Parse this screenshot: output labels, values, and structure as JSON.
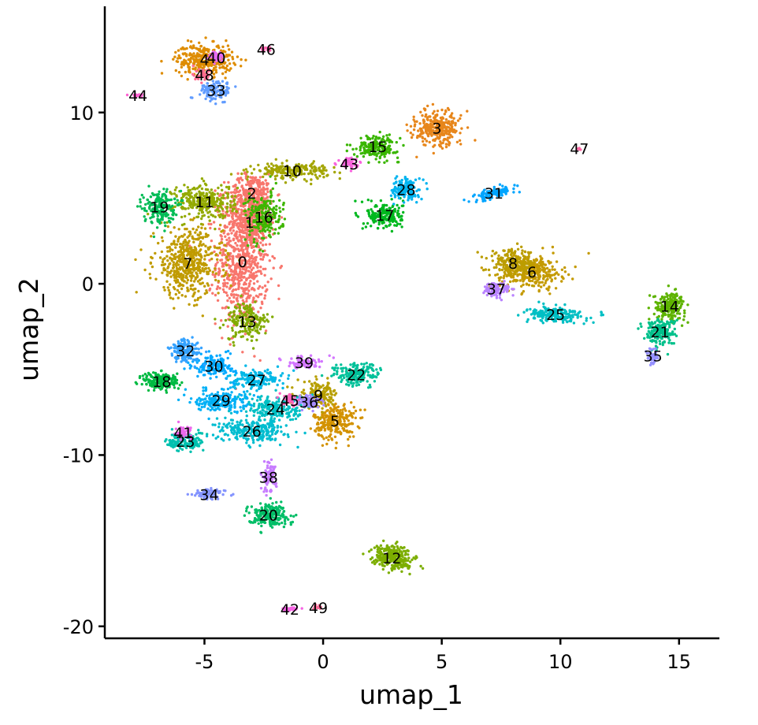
{
  "chart_data": {
    "type": "scatter",
    "title": "",
    "xlabel": "umap_1",
    "ylabel": "umap_2",
    "xlim": [
      -9.2,
      16.7
    ],
    "ylim": [
      -20.7,
      16.2
    ],
    "xticks": [
      -5,
      0,
      5,
      10,
      15
    ],
    "yticks": [
      -20,
      -10,
      0,
      10
    ],
    "xtick_labels": [
      "-5",
      "0",
      "5",
      "10",
      "15"
    ],
    "ytick_labels": [
      "-20",
      "-10",
      "0",
      "10"
    ],
    "grid": false,
    "legend": "none",
    "clusters": [
      {
        "label": "0",
        "x": -3.4,
        "y": 1.3,
        "sx": 1.0,
        "sy": 3.5,
        "rot": 0,
        "n": 700,
        "color": "#F8766D"
      },
      {
        "label": "1",
        "x": -3.1,
        "y": 3.6,
        "sx": 0.8,
        "sy": 1.2,
        "rot": 0,
        "n": 250,
        "color": "#F8766D"
      },
      {
        "label": "2",
        "x": -3.0,
        "y": 5.3,
        "sx": 0.9,
        "sy": 1.0,
        "rot": 0,
        "n": 250,
        "color": "#F8766D"
      },
      {
        "label": "3",
        "x": 4.8,
        "y": 9.1,
        "sx": 0.9,
        "sy": 0.9,
        "rot": 30,
        "n": 300,
        "color": "#E7861B"
      },
      {
        "label": "4",
        "x": -5.0,
        "y": 13.1,
        "sx": 1.1,
        "sy": 0.8,
        "rot": 0,
        "n": 300,
        "color": "#DE8C00"
      },
      {
        "label": "5",
        "x": 0.5,
        "y": -8.0,
        "sx": 0.8,
        "sy": 1.0,
        "rot": 0,
        "n": 250,
        "color": "#D39200"
      },
      {
        "label": "6",
        "x": 8.8,
        "y": 0.7,
        "sx": 1.2,
        "sy": 0.9,
        "rot": 0,
        "n": 300,
        "color": "#C49A00"
      },
      {
        "label": "7",
        "x": -5.7,
        "y": 1.2,
        "sx": 1.3,
        "sy": 1.8,
        "rot": 0,
        "n": 500,
        "color": "#C09B00"
      },
      {
        "label": "8",
        "x": 8.0,
        "y": 1.2,
        "sx": 0.9,
        "sy": 0.7,
        "rot": 0,
        "n": 200,
        "color": "#BB9D00"
      },
      {
        "label": "9",
        "x": -0.2,
        "y": -6.5,
        "sx": 0.8,
        "sy": 0.7,
        "rot": 0,
        "n": 150,
        "color": "#B79F00"
      },
      {
        "label": "10",
        "x": -1.3,
        "y": 6.6,
        "sx": 1.4,
        "sy": 0.4,
        "rot": 0,
        "n": 200,
        "color": "#A3A500"
      },
      {
        "label": "11",
        "x": -5.0,
        "y": 4.8,
        "sx": 1.2,
        "sy": 0.9,
        "rot": 0,
        "n": 300,
        "color": "#93AA00"
      },
      {
        "label": "12",
        "x": 2.9,
        "y": -16.0,
        "sx": 0.8,
        "sy": 0.6,
        "rot": -30,
        "n": 250,
        "color": "#7CAE00"
      },
      {
        "label": "13",
        "x": -3.2,
        "y": -2.2,
        "sx": 0.8,
        "sy": 1.0,
        "rot": 0,
        "n": 180,
        "color": "#82AB00"
      },
      {
        "label": "14",
        "x": 14.6,
        "y": -1.3,
        "sx": 0.6,
        "sy": 0.7,
        "rot": 0,
        "n": 200,
        "color": "#5EB300"
      },
      {
        "label": "15",
        "x": 2.3,
        "y": 8.0,
        "sx": 0.8,
        "sy": 0.6,
        "rot": 0,
        "n": 180,
        "color": "#39B600"
      },
      {
        "label": "16",
        "x": -2.5,
        "y": 3.9,
        "sx": 0.7,
        "sy": 1.3,
        "rot": 0,
        "n": 200,
        "color": "#3EB600"
      },
      {
        "label": "17",
        "x": 2.6,
        "y": 4.0,
        "sx": 0.7,
        "sy": 0.7,
        "rot": 0,
        "n": 180,
        "color": "#00B81F"
      },
      {
        "label": "18",
        "x": -6.8,
        "y": -5.7,
        "sx": 0.7,
        "sy": 0.5,
        "rot": 0,
        "n": 180,
        "color": "#00BA42"
      },
      {
        "label": "19",
        "x": -6.9,
        "y": 4.5,
        "sx": 0.6,
        "sy": 0.9,
        "rot": 0,
        "n": 180,
        "color": "#00BC56"
      },
      {
        "label": "20",
        "x": -2.3,
        "y": -13.5,
        "sx": 0.8,
        "sy": 0.6,
        "rot": 0,
        "n": 200,
        "color": "#00BE67"
      },
      {
        "label": "21",
        "x": 14.2,
        "y": -2.8,
        "sx": 0.6,
        "sy": 0.7,
        "rot": 0,
        "n": 180,
        "color": "#00C08B"
      },
      {
        "label": "22",
        "x": 1.4,
        "y": -5.3,
        "sx": 0.9,
        "sy": 0.6,
        "rot": 0,
        "n": 180,
        "color": "#00C19A"
      },
      {
        "label": "23",
        "x": -5.8,
        "y": -9.2,
        "sx": 0.7,
        "sy": 0.5,
        "rot": 0,
        "n": 150,
        "color": "#00C0AF"
      },
      {
        "label": "24",
        "x": -2.0,
        "y": -7.3,
        "sx": 1.2,
        "sy": 0.7,
        "rot": 0,
        "n": 200,
        "color": "#00BFC4"
      },
      {
        "label": "25",
        "x": 9.8,
        "y": -1.8,
        "sx": 1.1,
        "sy": 0.4,
        "rot": 0,
        "n": 200,
        "color": "#00BFC4"
      },
      {
        "label": "26",
        "x": -3.0,
        "y": -8.6,
        "sx": 1.3,
        "sy": 0.6,
        "rot": 0,
        "n": 250,
        "color": "#00BDD0"
      },
      {
        "label": "27",
        "x": -2.8,
        "y": -5.6,
        "sx": 1.0,
        "sy": 0.5,
        "rot": 0,
        "n": 150,
        "color": "#00B8E7"
      },
      {
        "label": "28",
        "x": 3.5,
        "y": 5.5,
        "sx": 0.5,
        "sy": 0.6,
        "rot": 0,
        "n": 150,
        "color": "#00B4F0"
      },
      {
        "label": "29",
        "x": -4.3,
        "y": -6.8,
        "sx": 1.0,
        "sy": 0.6,
        "rot": 0,
        "n": 200,
        "color": "#00B0F6"
      },
      {
        "label": "30",
        "x": -4.6,
        "y": -4.8,
        "sx": 0.8,
        "sy": 0.6,
        "rot": 0,
        "n": 150,
        "color": "#00A9FF"
      },
      {
        "label": "31",
        "x": 7.2,
        "y": 5.3,
        "sx": 0.9,
        "sy": 0.25,
        "rot": 20,
        "n": 120,
        "color": "#00A5FF"
      },
      {
        "label": "32",
        "x": -5.8,
        "y": -3.9,
        "sx": 0.6,
        "sy": 0.6,
        "rot": 0,
        "n": 150,
        "color": "#35A2FF"
      },
      {
        "label": "33",
        "x": -4.5,
        "y": 11.3,
        "sx": 0.6,
        "sy": 0.5,
        "rot": 0,
        "n": 120,
        "color": "#619CFF"
      },
      {
        "label": "34",
        "x": -4.8,
        "y": -12.3,
        "sx": 0.6,
        "sy": 0.3,
        "rot": 0,
        "n": 80,
        "color": "#8494FF"
      },
      {
        "label": "35",
        "x": 13.9,
        "y": -4.2,
        "sx": 0.2,
        "sy": 0.4,
        "rot": 0,
        "n": 50,
        "color": "#9590FF"
      },
      {
        "label": "36",
        "x": -0.6,
        "y": -6.9,
        "sx": 0.5,
        "sy": 0.4,
        "rot": 0,
        "n": 80,
        "color": "#A58AFF"
      },
      {
        "label": "37",
        "x": 7.3,
        "y": -0.3,
        "sx": 0.5,
        "sy": 0.4,
        "rot": 0,
        "n": 100,
        "color": "#B983FF"
      },
      {
        "label": "38",
        "x": -2.3,
        "y": -11.3,
        "sx": 0.3,
        "sy": 0.8,
        "rot": 0,
        "n": 80,
        "color": "#C77CFF"
      },
      {
        "label": "39",
        "x": -0.8,
        "y": -4.6,
        "sx": 0.7,
        "sy": 0.3,
        "rot": 0,
        "n": 80,
        "color": "#D376FF"
      },
      {
        "label": "40",
        "x": -4.5,
        "y": 13.2,
        "sx": 0.3,
        "sy": 0.3,
        "rot": 0,
        "n": 40,
        "color": "#E76BF3"
      },
      {
        "label": "41",
        "x": -5.9,
        "y": -8.7,
        "sx": 0.3,
        "sy": 0.3,
        "rot": 0,
        "n": 50,
        "color": "#ED68ED"
      },
      {
        "label": "42",
        "x": -1.4,
        "y": -19.0,
        "sx": 0.3,
        "sy": 0.1,
        "rot": 0,
        "n": 30,
        "color": "#F564E3"
      },
      {
        "label": "43",
        "x": 1.1,
        "y": 7.0,
        "sx": 0.4,
        "sy": 0.3,
        "rot": 0,
        "n": 50,
        "color": "#F962DD"
      },
      {
        "label": "44",
        "x": -7.8,
        "y": 11.0,
        "sx": 0.3,
        "sy": 0.1,
        "rot": 0,
        "n": 20,
        "color": "#FD61D1"
      },
      {
        "label": "45",
        "x": -1.4,
        "y": -6.8,
        "sx": 0.3,
        "sy": 0.3,
        "rot": 0,
        "n": 40,
        "color": "#FF62BC"
      },
      {
        "label": "46",
        "x": -2.4,
        "y": 13.7,
        "sx": 0.25,
        "sy": 0.1,
        "rot": 0,
        "n": 20,
        "color": "#FF64B0"
      },
      {
        "label": "47",
        "x": 10.8,
        "y": 7.9,
        "sx": 0.1,
        "sy": 0.1,
        "rot": 0,
        "n": 5,
        "color": "#FF67A4"
      },
      {
        "label": "48",
        "x": -5.0,
        "y": 12.2,
        "sx": 0.4,
        "sy": 0.3,
        "rot": 0,
        "n": 40,
        "color": "#FF6C91"
      },
      {
        "label": "49",
        "x": -0.2,
        "y": -18.9,
        "sx": 0.2,
        "sy": 0.1,
        "rot": 0,
        "n": 20,
        "color": "#FF6A98"
      }
    ]
  }
}
